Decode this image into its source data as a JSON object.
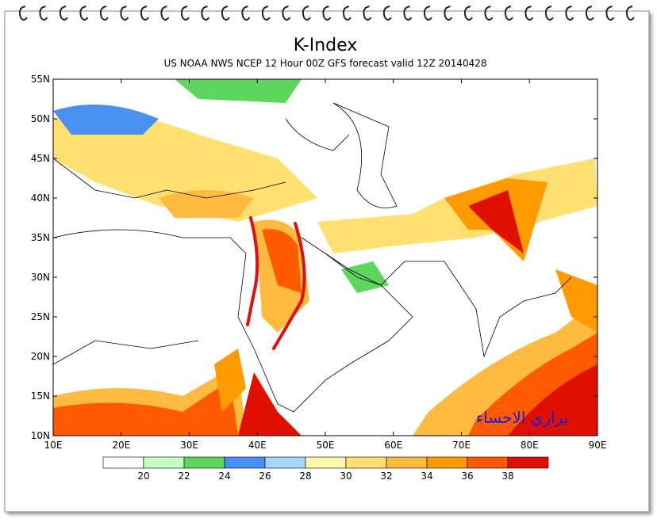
{
  "title": "K-Index",
  "subtitle": "US NOAA NWS NCEP 12 Hour 00Z GFS forecast valid 12Z 20140428",
  "map": {
    "lon_ticks": [
      "10E",
      "20E",
      "30E",
      "40E",
      "50E",
      "60E",
      "70E",
      "80E",
      "90E"
    ],
    "lat_ticks": [
      "10N",
      "15N",
      "20N",
      "25N",
      "30N",
      "35N",
      "40N",
      "45N",
      "50N",
      "55N"
    ]
  },
  "colorbar": {
    "labels": [
      20,
      22,
      24,
      26,
      28,
      30,
      32,
      34,
      36,
      38
    ],
    "colors": [
      "#ffffff",
      "#c4ffc4",
      "#5cd65c",
      "#4a90f0",
      "#a6d4ff",
      "#fff7aa",
      "#ffe070",
      "#ffbb40",
      "#ff9a00",
      "#ff5a00",
      "#e01000"
    ]
  },
  "watermark": "براري الاحساء"
}
